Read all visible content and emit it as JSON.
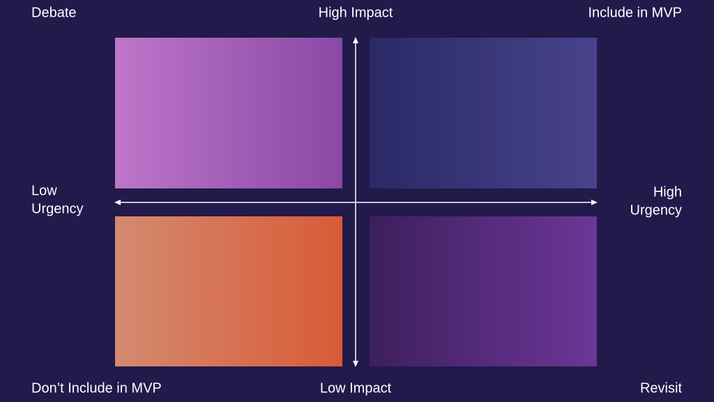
{
  "corners": {
    "top_left": "Debate",
    "top_right": "Include in MVP",
    "bottom_left": "Don’t Include in MVP",
    "bottom_right": "Revisit"
  },
  "axes": {
    "top": "High Impact",
    "bottom": "Low Impact",
    "left": [
      "Low",
      "Urgency"
    ],
    "right": [
      "High",
      "Urgency"
    ]
  }
}
